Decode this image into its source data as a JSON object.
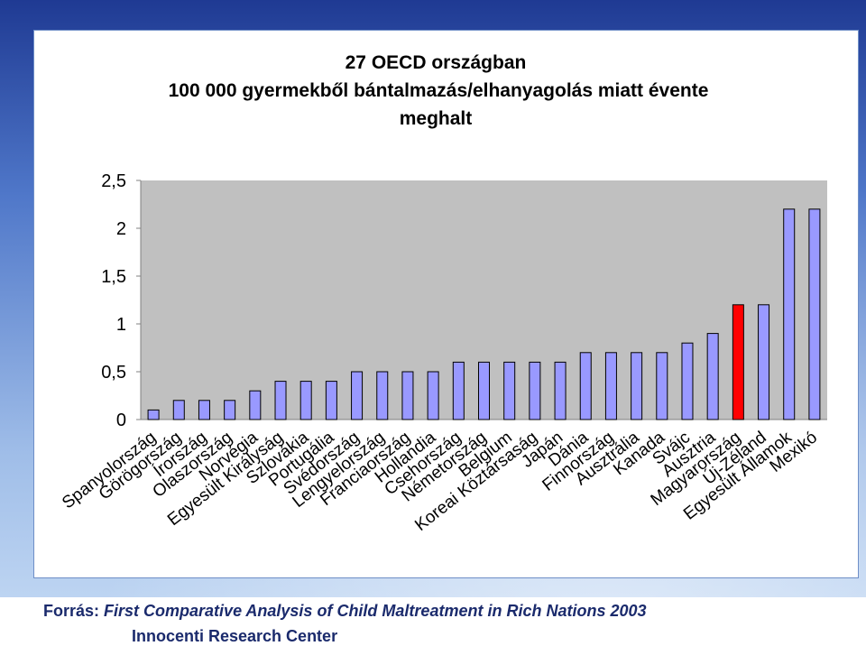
{
  "chart_data": {
    "type": "bar",
    "title_lines": [
      "27 OECD országban",
      "100 000 gyermekből bántalmazás/elhanyagolás miatt évente",
      "meghalt"
    ],
    "categories": [
      "Spanyolország",
      "Görögország",
      "Írország",
      "Olaszország",
      "Norvégia",
      "Egyesült Királyság",
      "Szlovákia",
      "Portugália",
      "Svédország",
      "Lengyelország",
      "Franciaország",
      "Hollandia",
      "Csehország",
      "Németország",
      "Belgium",
      "Koreai Köztársaság",
      "Japán",
      "Dánia",
      "Finnország",
      "Ausztrália",
      "Kanada",
      "Svájc",
      "Ausztria",
      "Magyarország",
      "Új-Zéland",
      "Egyesült Államok",
      "Mexikó"
    ],
    "values": [
      0.1,
      0.2,
      0.2,
      0.2,
      0.3,
      0.4,
      0.4,
      0.4,
      0.5,
      0.5,
      0.5,
      0.5,
      0.6,
      0.6,
      0.6,
      0.6,
      0.6,
      0.7,
      0.7,
      0.7,
      0.7,
      0.8,
      0.9,
      1.2,
      1.2,
      2.2,
      2.2
    ],
    "highlight_category": "Magyarország",
    "ylim": [
      0,
      2.5
    ],
    "yticks": [
      "0",
      "0,5",
      "1",
      "1,5",
      "2",
      "2,5"
    ],
    "ytick_values": [
      0,
      0.5,
      1,
      1.5,
      2,
      2.5
    ],
    "grid": false,
    "legend": "none",
    "colors": {
      "bar": "#9999ff",
      "highlight": "#ff0000",
      "plot_area": "#c0c0c0",
      "bar_outline": "#000000"
    }
  },
  "footer": {
    "source_label": "Forrás: ",
    "source_title": "First Comparative Analysis of Child Maltreatment in Rich Nations 2003",
    "institution": "Innocenti Research Center"
  }
}
